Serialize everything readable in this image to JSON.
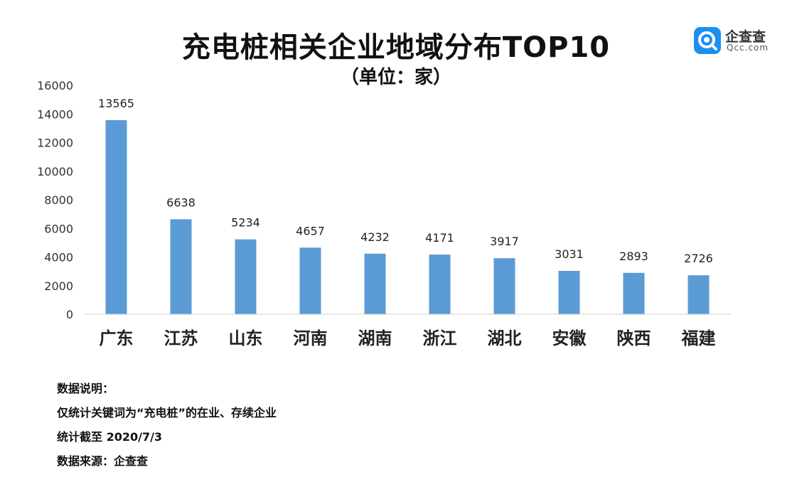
{
  "logo": {
    "name": "企查查",
    "sub": "Qcc.com",
    "brand_color": "#1a8ff0"
  },
  "chart_data": {
    "type": "bar",
    "title": "充电桩相关企业地域分布TOP10",
    "subtitle": "（单位：家）",
    "categories": [
      "广东",
      "江苏",
      "山东",
      "河南",
      "湖南",
      "浙江",
      "湖北",
      "安徽",
      "陕西",
      "福建"
    ],
    "values": [
      13565,
      6638,
      5234,
      4657,
      4232,
      4171,
      3917,
      3031,
      2893,
      2726
    ],
    "ylim": [
      0,
      16000
    ],
    "yticks": [
      "0",
      "2000",
      "4000",
      "6000",
      "8000",
      "10000",
      "12000",
      "14000",
      "16000"
    ],
    "grid": false,
    "legend": "none",
    "bar_color": "#5b9bd5"
  },
  "notes": [
    "数据说明：",
    "仅统计关键词为“充电桩”的在业、存续企业",
    "统计截至 2020/7/3",
    "数据来源：企查查"
  ]
}
